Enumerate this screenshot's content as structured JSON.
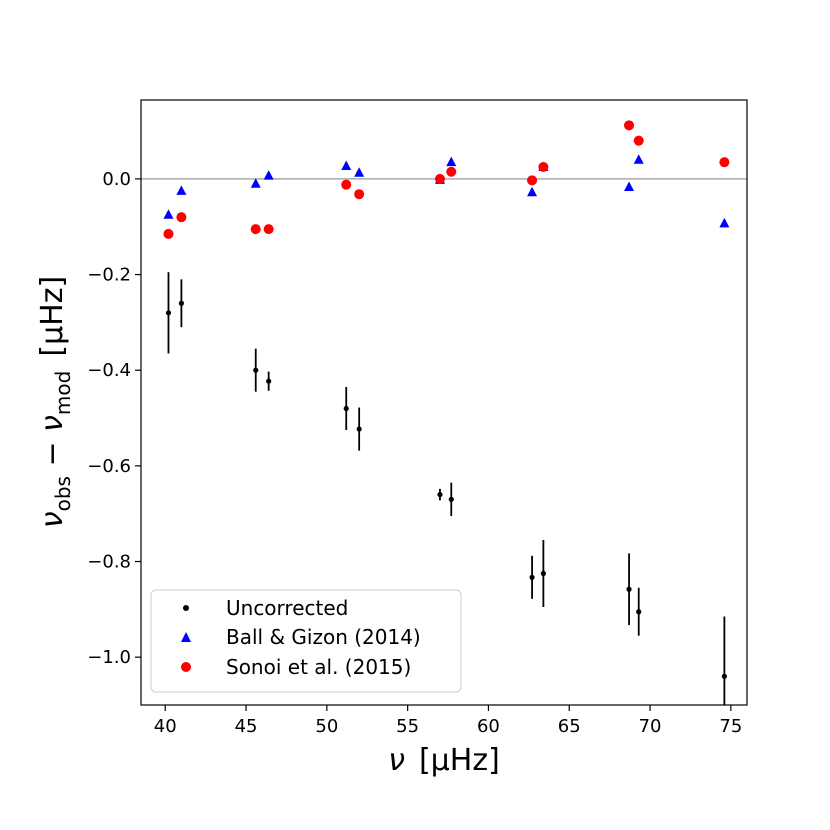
{
  "chart_data": {
    "type": "scatter",
    "title": "",
    "xlabel": {
      "symbol": "ν",
      "unit": "[μHz]"
    },
    "ylabel": {
      "symbol": "ν",
      "sub1": "obs",
      "minus": " − ",
      "sub2": "mod",
      "unit": "[μHz]"
    },
    "xlim": [
      38.5,
      76
    ],
    "ylim": [
      -1.1,
      0.165
    ],
    "xticks": [
      40,
      45,
      50,
      55,
      60,
      65,
      70,
      75
    ],
    "xtick_labels": [
      "40",
      "45",
      "50",
      "55",
      "60",
      "65",
      "70",
      "75"
    ],
    "yticks": [
      -1.0,
      -0.8,
      -0.6,
      -0.4,
      -0.2,
      0.0
    ],
    "ytick_labels": [
      "−1.0",
      "−0.8",
      "−0.6",
      "−0.4",
      "−0.2",
      "0.0"
    ],
    "reference_line": {
      "y": 0.0,
      "color": "#aaaaaa"
    },
    "grid": false,
    "legend_position": "lower-left",
    "series": [
      {
        "name": "Uncorrected",
        "marker": "dot",
        "color": "#000000",
        "points": [
          {
            "x": 40.2,
            "y": -0.28,
            "err": 0.085
          },
          {
            "x": 41.0,
            "y": -0.26,
            "err": 0.05
          },
          {
            "x": 45.6,
            "y": -0.4,
            "err": 0.045
          },
          {
            "x": 46.4,
            "y": -0.423,
            "err": 0.02
          },
          {
            "x": 51.2,
            "y": -0.48,
            "err": 0.045
          },
          {
            "x": 52.0,
            "y": -0.523,
            "err": 0.045
          },
          {
            "x": 57.0,
            "y": -0.66,
            "err": 0.012
          },
          {
            "x": 57.7,
            "y": -0.67,
            "err": 0.035
          },
          {
            "x": 62.7,
            "y": -0.833,
            "err": 0.045
          },
          {
            "x": 63.4,
            "y": -0.825,
            "err": 0.07
          },
          {
            "x": 68.7,
            "y": -0.858,
            "err": 0.075
          },
          {
            "x": 69.3,
            "y": -0.905,
            "err": 0.05
          },
          {
            "x": 74.6,
            "y": -1.04,
            "err": 0.125
          }
        ]
      },
      {
        "name": "Ball & Gizon (2014)",
        "marker": "triangle",
        "color": "#0000ff",
        "points": [
          {
            "x": 40.2,
            "y": -0.075
          },
          {
            "x": 41.0,
            "y": -0.025
          },
          {
            "x": 45.6,
            "y": -0.01
          },
          {
            "x": 46.4,
            "y": 0.007
          },
          {
            "x": 51.2,
            "y": 0.027
          },
          {
            "x": 52.0,
            "y": 0.013
          },
          {
            "x": 57.0,
            "y": -0.002
          },
          {
            "x": 57.7,
            "y": 0.035
          },
          {
            "x": 62.7,
            "y": -0.028
          },
          {
            "x": 63.4,
            "y": 0.025
          },
          {
            "x": 68.7,
            "y": -0.017
          },
          {
            "x": 69.3,
            "y": 0.04
          },
          {
            "x": 74.6,
            "y": -0.093
          }
        ]
      },
      {
        "name": "Sonoi et al. (2015)",
        "marker": "circle",
        "color": "#ff0000",
        "points": [
          {
            "x": 40.2,
            "y": -0.115
          },
          {
            "x": 41.0,
            "y": -0.08
          },
          {
            "x": 45.6,
            "y": -0.105
          },
          {
            "x": 46.4,
            "y": -0.105
          },
          {
            "x": 51.2,
            "y": -0.012
          },
          {
            "x": 52.0,
            "y": -0.032
          },
          {
            "x": 57.0,
            "y": 0.0
          },
          {
            "x": 57.7,
            "y": 0.015
          },
          {
            "x": 62.7,
            "y": -0.003
          },
          {
            "x": 63.4,
            "y": 0.025
          },
          {
            "x": 68.7,
            "y": 0.112
          },
          {
            "x": 69.3,
            "y": 0.08
          },
          {
            "x": 74.6,
            "y": 0.035
          }
        ]
      }
    ]
  }
}
